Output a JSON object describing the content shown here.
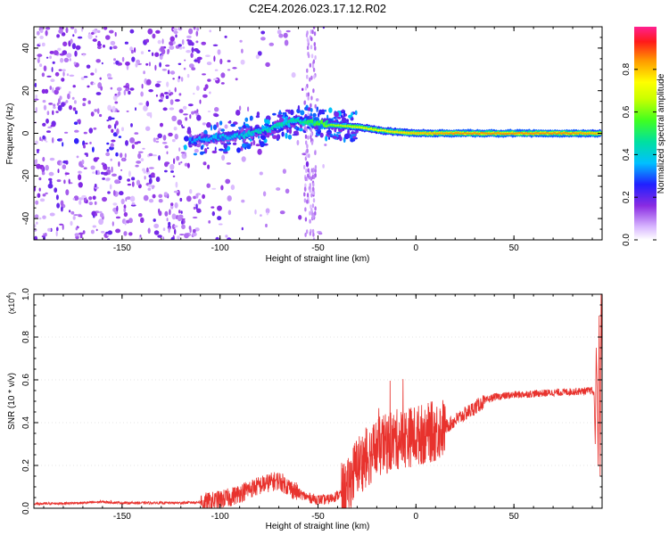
{
  "title": "C2E4.2026.023.17.12.R02",
  "colors": {
    "snr_line": "#e8322d",
    "frame": "#000000"
  },
  "chart_data": [
    {
      "type": "heatmap",
      "name": "spectrogram",
      "xlabel": "Height of straight line (km)",
      "ylabel": "Frequency (Hz)",
      "xlim": [
        -195,
        95
      ],
      "ylim": [
        -50,
        50
      ],
      "xticks": [
        -150,
        -100,
        -50,
        0,
        50
      ],
      "yticks": [
        -40,
        -20,
        0,
        20,
        40
      ],
      "colorbar": {
        "label": "Normalized spectral amplitude",
        "range": [
          0.0,
          1.0
        ],
        "ticks": [
          0.0,
          0.2,
          0.4,
          0.6,
          0.8
        ],
        "tick_labels": [
          "0.0",
          "0.2",
          "0.4",
          "0.6",
          "0.8"
        ]
      },
      "ridge": [
        {
          "x": -110,
          "freq": -3,
          "amp": 0.35
        },
        {
          "x": -90,
          "freq": -1,
          "amp": 0.4
        },
        {
          "x": -75,
          "freq": 2,
          "amp": 0.45
        },
        {
          "x": -60,
          "freq": 6,
          "amp": 0.45
        },
        {
          "x": -45,
          "freq": 4,
          "amp": 0.6
        },
        {
          "x": -30,
          "freq": 3,
          "amp": 0.7
        },
        {
          "x": -15,
          "freq": 1,
          "amp": 0.75
        },
        {
          "x": 0,
          "freq": 0,
          "amp": 0.8
        },
        {
          "x": 20,
          "freq": 0,
          "amp": 0.85
        },
        {
          "x": 50,
          "freq": 0,
          "amp": 0.85
        },
        {
          "x": 80,
          "freq": 0,
          "amp": 0.85
        },
        {
          "x": 95,
          "freq": 0,
          "amp": 0.8
        }
      ]
    },
    {
      "type": "line",
      "name": "snr",
      "xlabel": "Height of straight line (km)",
      "ylabel": "SNR (10 * v/v)",
      "multiplier_label": "(x10",
      "multiplier_exp": "4",
      "multiplier_close": ")",
      "xlim": [
        -195,
        95
      ],
      "ylim": [
        0,
        1.0
      ],
      "xticks": [
        -150,
        -100,
        -50,
        0,
        50
      ],
      "yticks": [
        0.0,
        0.2,
        0.4,
        0.6,
        0.8,
        1.0
      ],
      "ytick_labels": [
        "0.0",
        "0.2",
        "0.4",
        "0.6",
        "0.8",
        "1.0"
      ],
      "series": [
        {
          "name": "SNR",
          "x": [
            -195,
            -170,
            -160,
            -150,
            -120,
            -105,
            -95,
            -85,
            -75,
            -70,
            -65,
            -60,
            -55,
            -50,
            -45,
            -40,
            -35,
            -33,
            -30,
            -25,
            -20,
            -15,
            -10,
            -5,
            0,
            5,
            10,
            15,
            20,
            25,
            30,
            35,
            40,
            50,
            60,
            70,
            80,
            90,
            92,
            93,
            94,
            95
          ],
          "y": [
            0.02,
            0.025,
            0.03,
            0.025,
            0.025,
            0.03,
            0.05,
            0.09,
            0.12,
            0.13,
            0.1,
            0.07,
            0.05,
            0.04,
            0.04,
            0.06,
            0.08,
            0.14,
            0.2,
            0.24,
            0.28,
            0.3,
            0.32,
            0.33,
            0.34,
            0.35,
            0.36,
            0.38,
            0.41,
            0.44,
            0.47,
            0.5,
            0.52,
            0.53,
            0.535,
            0.54,
            0.545,
            0.55,
            0.5,
            0.7,
            0.3,
            0.95
          ]
        }
      ]
    }
  ]
}
